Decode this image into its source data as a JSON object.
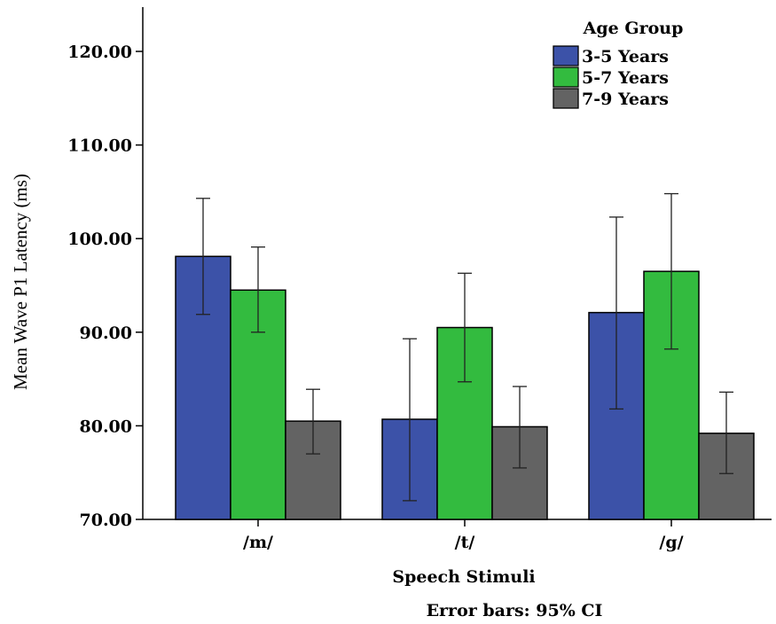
{
  "chart_data": {
    "type": "bar",
    "categories": [
      "/m/",
      "/t/",
      "/g/"
    ],
    "series": [
      {
        "name": "3-5 Years",
        "color": "#3c52a8",
        "values": [
          98.1,
          80.7,
          92.1
        ],
        "ci_lower": [
          91.9,
          72.0,
          81.8
        ],
        "ci_upper": [
          104.3,
          89.3,
          102.3
        ]
      },
      {
        "name": "5-7 Years",
        "color": "#33bb3f",
        "values": [
          94.5,
          90.5,
          96.5
        ],
        "ci_lower": [
          90.0,
          84.7,
          88.2
        ],
        "ci_upper": [
          99.1,
          96.3,
          104.8
        ]
      },
      {
        "name": "7-9 Years",
        "color": "#636363",
        "values": [
          80.5,
          79.9,
          79.2
        ],
        "ci_lower": [
          77.0,
          75.5,
          74.9
        ],
        "ci_upper": [
          83.9,
          84.2,
          83.6
        ]
      }
    ],
    "ylim": [
      70,
      125
    ],
    "yticks": [
      "70.00",
      "80.00",
      "90.00",
      "100.00",
      "110.00",
      "120.00"
    ],
    "ytick_values": [
      70,
      80,
      90,
      100,
      110,
      120
    ],
    "xlabel": "Speech Stimuli",
    "ylabel": "Mean Wave P1 Latency  (ms)",
    "legend_title": "Age Group",
    "legend_position": "top-right",
    "note": "Error bars: 95% CI",
    "grid": false
  }
}
